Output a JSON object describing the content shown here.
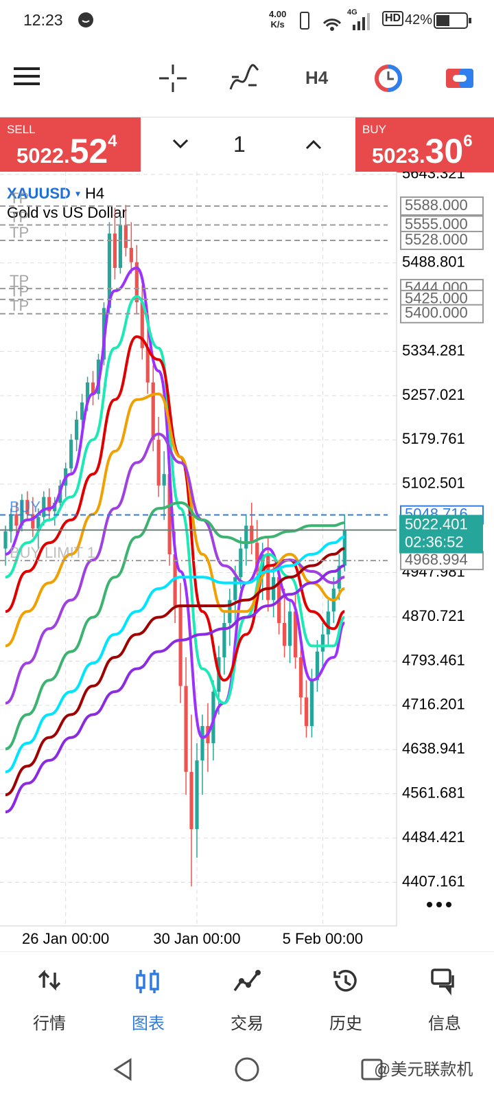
{
  "status_bar": {
    "time": "12:23",
    "net_speed": "4.00",
    "net_unit": "K/s",
    "network": "4G",
    "hd": "HD",
    "battery": "42%"
  },
  "toolbar": {
    "timeframe": "H4"
  },
  "trade_panel": {
    "sell": {
      "label": "SELL",
      "price_main": "5022.",
      "price_big": "52",
      "price_sup": "4"
    },
    "quantity": "1",
    "buy": {
      "label": "BUY",
      "price_main": "5023.",
      "price_big": "30",
      "price_sup": "6"
    }
  },
  "chart_data": {
    "type": "candlestick",
    "symbol": "XAUUSD",
    "timeframe": "H4",
    "description": "Gold vs US Dollar",
    "up_color": "#26a69a",
    "down_color": "#ef5350",
    "candles": [
      [
        4990,
        5030,
        4960,
        5020
      ],
      [
        5020,
        5060,
        5000,
        5050
      ],
      [
        5050,
        5070,
        5010,
        5030
      ],
      [
        5030,
        5085,
        5020,
        5075
      ],
      [
        5075,
        5090,
        5040,
        5050
      ],
      [
        5050,
        5080,
        5010,
        5025
      ],
      [
        5025,
        5060,
        4990,
        5045
      ],
      [
        5045,
        5090,
        5030,
        5080
      ],
      [
        5080,
        5095,
        5040,
        5055
      ],
      [
        5055,
        5080,
        5030,
        5070
      ],
      [
        5070,
        5110,
        5060,
        5100
      ],
      [
        5100,
        5140,
        5080,
        5130
      ],
      [
        5130,
        5190,
        5120,
        5180
      ],
      [
        5180,
        5230,
        5160,
        5215
      ],
      [
        5215,
        5260,
        5190,
        5245
      ],
      [
        5245,
        5290,
        5230,
        5280
      ],
      [
        5280,
        5300,
        5240,
        5260
      ],
      [
        5260,
        5330,
        5250,
        5320
      ],
      [
        5320,
        5420,
        5310,
        5410
      ],
      [
        5410,
        5560,
        5400,
        5540
      ],
      [
        5540,
        5585,
        5460,
        5480
      ],
      [
        5480,
        5570,
        5470,
        5555
      ],
      [
        5555,
        5590,
        5500,
        5515
      ],
      [
        5515,
        5560,
        5470,
        5490
      ],
      [
        5490,
        5520,
        5400,
        5420
      ],
      [
        5420,
        5450,
        5320,
        5340
      ],
      [
        5340,
        5380,
        5260,
        5280
      ],
      [
        5280,
        5310,
        5160,
        5180
      ],
      [
        5180,
        5220,
        5080,
        5100
      ],
      [
        5100,
        5160,
        5040,
        5120
      ],
      [
        5120,
        5140,
        4960,
        4980
      ],
      [
        4980,
        5020,
        4860,
        4890
      ],
      [
        4890,
        4930,
        4720,
        4750
      ],
      [
        4750,
        4800,
        4560,
        4600
      ],
      [
        4600,
        4700,
        4400,
        4500
      ],
      [
        4500,
        4650,
        4450,
        4620
      ],
      [
        4620,
        4700,
        4560,
        4680
      ],
      [
        4680,
        4720,
        4600,
        4650
      ],
      [
        4650,
        4760,
        4620,
        4740
      ],
      [
        4740,
        4820,
        4700,
        4800
      ],
      [
        4800,
        4880,
        4770,
        4860
      ],
      [
        4860,
        4920,
        4820,
        4900
      ],
      [
        4900,
        4960,
        4860,
        4940
      ],
      [
        4940,
        5010,
        4920,
        4990
      ],
      [
        4990,
        5050,
        4960,
        5030
      ],
      [
        5030,
        5070,
        4980,
        5000
      ],
      [
        5000,
        5040,
        4930,
        4950
      ],
      [
        4950,
        5000,
        4900,
        4980
      ],
      [
        4980,
        5010,
        4880,
        4900
      ],
      [
        4900,
        4960,
        4870,
        4940
      ],
      [
        4940,
        4970,
        4840,
        4860
      ],
      [
        4860,
        4920,
        4800,
        4820
      ],
      [
        4820,
        4900,
        4790,
        4880
      ],
      [
        4880,
        4910,
        4780,
        4800
      ],
      [
        4800,
        4830,
        4700,
        4730
      ],
      [
        4730,
        4760,
        4660,
        4680
      ],
      [
        4680,
        4780,
        4660,
        4760
      ],
      [
        4760,
        4830,
        4740,
        4810
      ],
      [
        4810,
        4860,
        4780,
        4840
      ],
      [
        4840,
        4900,
        4820,
        4880
      ],
      [
        4880,
        4940,
        4860,
        4920
      ],
      [
        4920,
        4980,
        4900,
        4960
      ],
      [
        4960,
        5050,
        4950,
        5022.401
      ]
    ],
    "moving_averages": {
      "x": [
        0,
        4,
        8,
        12,
        16,
        20,
        24,
        28,
        32,
        36,
        40,
        44,
        48,
        52,
        56,
        60,
        62
      ],
      "series": [
        {
          "color": "#9b30ff",
          "values": [
            4980,
            5040,
            5060,
            5120,
            5260,
            5440,
            5480,
            5300,
            4950,
            4660,
            4720,
            4930,
            4990,
            4900,
            4760,
            4800,
            4860
          ]
        },
        {
          "color": "#1de9b6",
          "values": [
            4940,
            5000,
            5040,
            5080,
            5180,
            5340,
            5430,
            5340,
            5060,
            4780,
            4720,
            4870,
            4980,
            4940,
            4820,
            4820,
            4870
          ]
        },
        {
          "color": "#e00000",
          "values": [
            4880,
            4950,
            5000,
            5040,
            5120,
            5250,
            5360,
            5320,
            5150,
            4880,
            4760,
            4840,
            4960,
            4970,
            4880,
            4850,
            4880
          ]
        },
        {
          "color": "#f0a000",
          "values": [
            4820,
            4880,
            4930,
            4980,
            5050,
            5160,
            5250,
            5260,
            5150,
            4980,
            4880,
            4880,
            4950,
            4980,
            4930,
            4900,
            4920
          ]
        },
        {
          "color": "#a040e0",
          "values": [
            4720,
            4790,
            4850,
            4900,
            4970,
            5060,
            5140,
            5190,
            5140,
            5040,
            4960,
            4930,
            4950,
            4970,
            4950,
            4930,
            4940
          ]
        },
        {
          "color": "#3cb371",
          "values": [
            4640,
            4700,
            4760,
            4810,
            4870,
            4940,
            5010,
            5060,
            5070,
            5040,
            5010,
            5000,
            5010,
            5020,
            5030,
            5030,
            5035
          ]
        },
        {
          "color": "#00e5ff",
          "values": [
            4600,
            4650,
            4700,
            4740,
            4790,
            4840,
            4880,
            4920,
            4940,
            4940,
            4930,
            4930,
            4950,
            4960,
            4980,
            5000,
            5010
          ]
        },
        {
          "color": "#a00000",
          "values": [
            4560,
            4610,
            4660,
            4700,
            4750,
            4800,
            4840,
            4870,
            4890,
            4890,
            4890,
            4900,
            4920,
            4940,
            4960,
            4980,
            4990
          ]
        },
        {
          "color": "#8a2be2",
          "values": [
            4530,
            4580,
            4620,
            4660,
            4700,
            4740,
            4780,
            4810,
            4830,
            4840,
            4850,
            4870,
            4890,
            4910,
            4930,
            4950,
            4960
          ]
        }
      ]
    },
    "xlim": [
      -1,
      71.5
    ],
    "xticks": [
      {
        "value": 11,
        "label": "26 Jan 00:00"
      },
      {
        "value": 35,
        "label": "30 Jan 00:00"
      },
      {
        "value": 58,
        "label": "5 Feb 00:00"
      }
    ],
    "ylim": [
      4331,
      5648
    ],
    "yticks": [
      5643.321,
      5488.801,
      5334.281,
      5257.021,
      5179.761,
      5102.501,
      4947.981,
      4870.721,
      4793.461,
      4716.201,
      4638.941,
      4561.681,
      4484.421,
      4407.161
    ],
    "grid": true,
    "levels": [
      {
        "value": 5588,
        "label": "5588.000",
        "tag": "TP",
        "style": "tp"
      },
      {
        "value": 5555,
        "label": "5555.000",
        "tag": "TP",
        "style": "tp"
      },
      {
        "value": 5528,
        "label": "5528.000",
        "tag": "TP",
        "style": "tp"
      },
      {
        "value": 5444,
        "label": "5444.000",
        "tag": "TP",
        "style": "tp"
      },
      {
        "value": 5425,
        "label": "5425.000",
        "tag": "TP",
        "style": "tp"
      },
      {
        "value": 5400,
        "label": "5400.000",
        "tag": "TP",
        "style": "tp"
      },
      {
        "value": 5048.716,
        "label": "5048.716",
        "tag": "BUY",
        "style": "ask"
      },
      {
        "value": 4968.994,
        "label": "4968.994",
        "tag": "BUY LIMIT 1",
        "style": "limit"
      }
    ],
    "bid": {
      "value": 5022.401,
      "label": "5022.401",
      "countdown": "02:36:52"
    }
  },
  "bottom_nav": {
    "items": [
      "行情",
      "图表",
      "交易",
      "历史",
      "信息"
    ],
    "active": 1
  },
  "watermark": "@美元联款机"
}
